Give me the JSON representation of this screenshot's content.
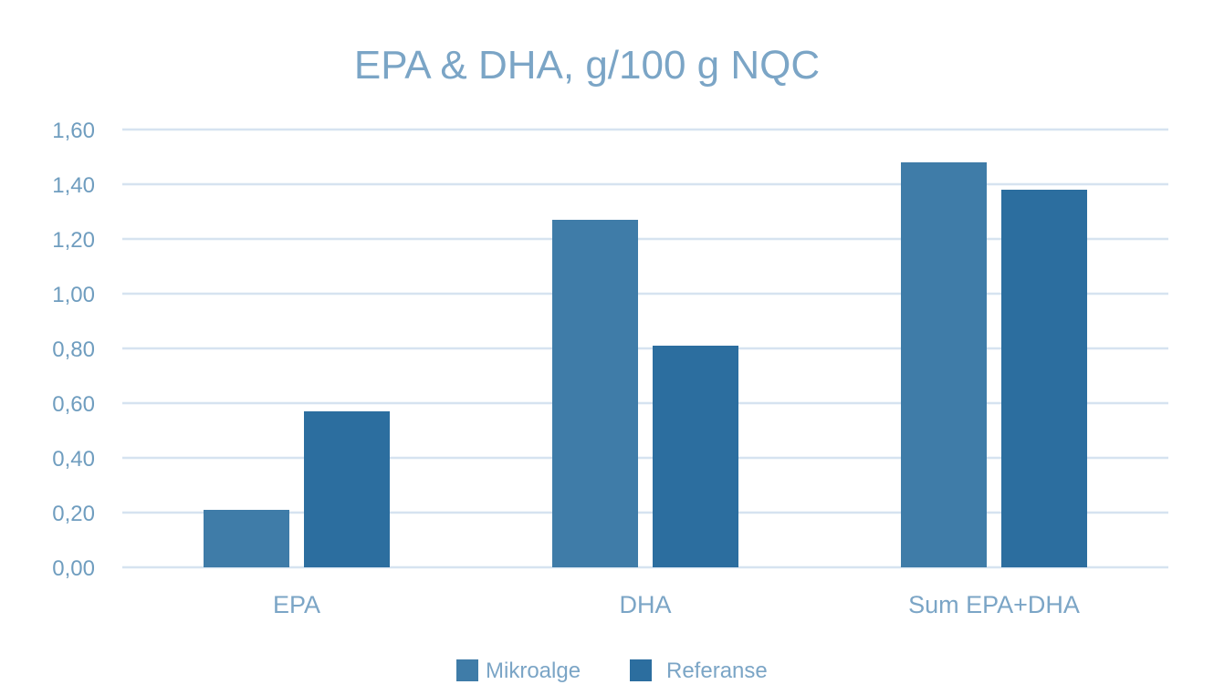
{
  "chart_data": {
    "type": "bar",
    "title": "EPA & DHA, g/100 g NQC",
    "xlabel": "",
    "ylabel": "",
    "categories": [
      "EPA",
      "DHA",
      "Sum EPA+DHA"
    ],
    "series": [
      {
        "name": "Mikroalge",
        "values": [
          0.21,
          1.27,
          1.48
        ],
        "color": "#3f7ca8"
      },
      {
        "name": "Referanse",
        "values": [
          0.57,
          0.81,
          1.38
        ],
        "color": "#2c6e9f"
      }
    ],
    "ylim": [
      0,
      1.6
    ],
    "yticks": [
      "0,00",
      "0,20",
      "0,40",
      "0,60",
      "0,80",
      "1,00",
      "1,20",
      "1,40",
      "1,60"
    ],
    "grid": true,
    "legend": "bottom-center"
  }
}
